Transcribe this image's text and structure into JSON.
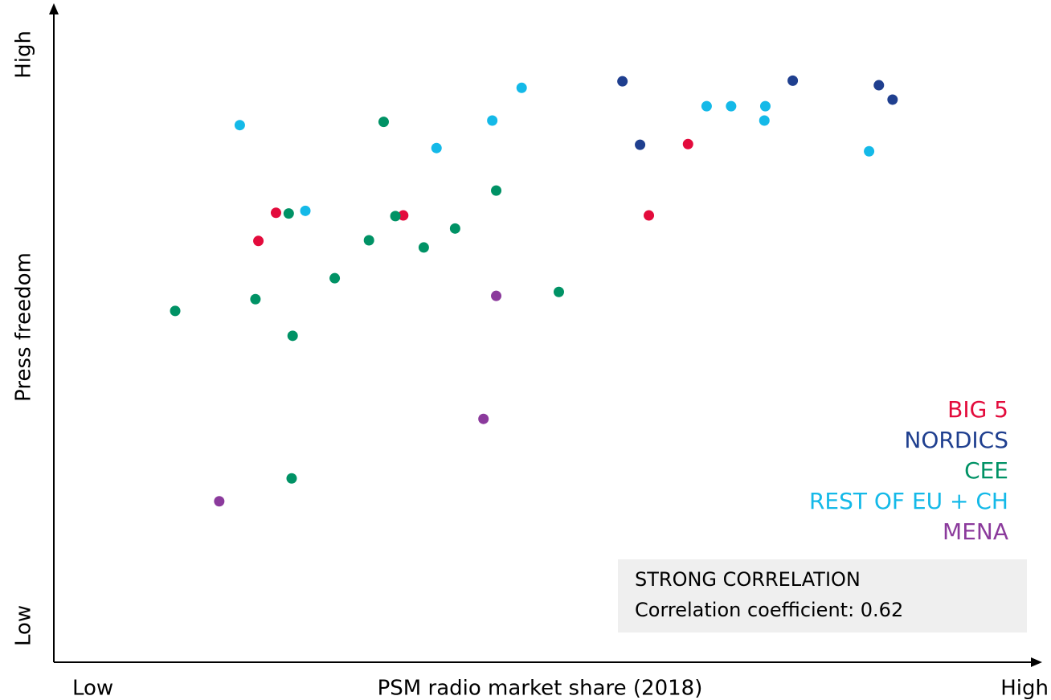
{
  "chart_data": {
    "type": "scatter",
    "x_label": "PSM radio market share (2018)",
    "y_label": "Press freedom",
    "xlim": [
      0,
      100
    ],
    "ylim": [
      0,
      100
    ],
    "xticks": [
      {
        "value": 0,
        "label": "Low"
      },
      {
        "value": 100,
        "label": "High"
      }
    ],
    "yticks": [
      {
        "value": 0,
        "label": "Low"
      },
      {
        "value": 100,
        "label": "High"
      }
    ],
    "legend": "right",
    "series": [
      {
        "name": "BIG 5",
        "color": "#e30b3c",
        "x": [
          22.7,
          20.9,
          35.7,
          64.8,
          60.8
        ],
        "values": [
          68.7,
          64.4,
          68.3,
          79.2,
          68.3
        ]
      },
      {
        "name": "NORDICS",
        "color": "#1f3f8f",
        "x": [
          58.1,
          59.9,
          75.5,
          84.3,
          85.7
        ],
        "values": [
          88.8,
          79.1,
          88.9,
          88.2,
          86.0
        ]
      },
      {
        "name": "CEE",
        "color": "#009265",
        "x": [
          12.4,
          20.6,
          24.4,
          24.3,
          24.0,
          28.7,
          32.2,
          33.7,
          34.9,
          37.8,
          41.0,
          45.2,
          51.6
        ],
        "values": [
          53.7,
          55.5,
          49.9,
          28.1,
          68.6,
          58.7,
          64.5,
          82.6,
          68.2,
          63.4,
          66.3,
          72.1,
          56.6
        ]
      },
      {
        "name": "REST OF EU + CH",
        "color": "#14b9e8",
        "x": [
          19.0,
          25.7,
          39.1,
          44.8,
          47.8,
          66.7,
          69.2,
          72.7,
          72.6,
          83.3
        ],
        "values": [
          82.1,
          69.0,
          78.6,
          82.8,
          87.8,
          85.0,
          85.0,
          85.0,
          82.8,
          78.1
        ]
      },
      {
        "name": "MENA",
        "color": "#8b3a9c",
        "x": [
          16.9,
          43.9,
          45.2
        ],
        "values": [
          24.6,
          37.2,
          56.0
        ]
      }
    ],
    "annotation": {
      "title": "STRONG CORRELATION",
      "text": "Correlation coefficient: 0.62"
    }
  }
}
